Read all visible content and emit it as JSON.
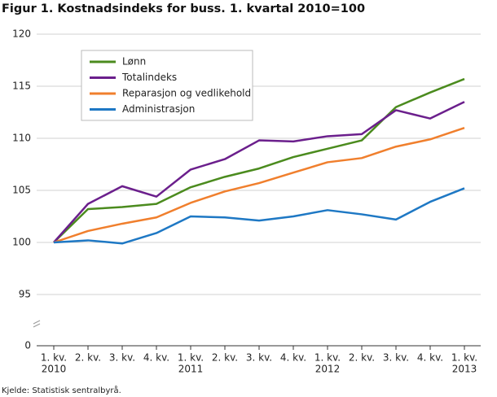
{
  "chart_data": {
    "type": "line",
    "title": "Figur 1. Kostnadsindeks for buss. 1. kvartal 2010=100",
    "source": "Kjelde: Statistisk sentralbyrå.",
    "categories": [
      [
        "1. kv.",
        "2010"
      ],
      [
        "2. kv."
      ],
      [
        "3. kv."
      ],
      [
        "4. kv."
      ],
      [
        "1. kv.",
        "2011"
      ],
      [
        "2. kv."
      ],
      [
        "3. kv."
      ],
      [
        "4. kv."
      ],
      [
        "1. kv.",
        "2012"
      ],
      [
        "2. kv."
      ],
      [
        "3. kv."
      ],
      [
        "4. kv."
      ],
      [
        "1. kv.",
        "2013"
      ]
    ],
    "series": [
      {
        "name": "Lønn",
        "color": "#4b8b1e",
        "values": [
          100,
          103.2,
          103.4,
          103.7,
          105.3,
          106.3,
          107.1,
          108.2,
          109.0,
          109.8,
          113.0,
          114.4,
          115.7
        ]
      },
      {
        "name": "Totalindeks",
        "color": "#6b1f8c",
        "values": [
          100,
          103.7,
          105.4,
          104.4,
          107.0,
          108.0,
          109.8,
          109.7,
          110.2,
          110.4,
          112.7,
          111.9,
          113.5
        ]
      },
      {
        "name": "Reparasjon og vedlikehold",
        "color": "#f07f2d",
        "values": [
          100,
          101.1,
          101.8,
          102.4,
          103.8,
          104.9,
          105.7,
          106.7,
          107.7,
          108.1,
          109.2,
          109.9,
          111.0
        ]
      },
      {
        "name": "Administrasjon",
        "color": "#1e78c4",
        "values": [
          100,
          100.2,
          99.9,
          100.9,
          102.5,
          102.4,
          102.1,
          102.5,
          103.1,
          102.7,
          102.2,
          103.9,
          105.2
        ]
      }
    ],
    "ylim": [
      0,
      120
    ],
    "y_break": [
      0,
      95
    ],
    "yticks": [
      0,
      95,
      100,
      105,
      110,
      115,
      120
    ],
    "grid": true,
    "legend": "top-left"
  }
}
